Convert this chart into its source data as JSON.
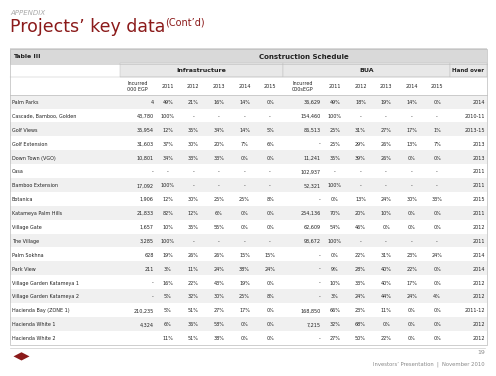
{
  "title_appendix": "APPENDIX",
  "title_main": "Projects’ key data",
  "title_cont": "(Cont’d)",
  "table_label": "Table III",
  "construction_schedule": "Construction Schedule",
  "infrastructure": "Infrastructure",
  "bua": "BUA",
  "hand_over": "Hand over",
  "col_incurred_infra": "Incurred\n000 EGP",
  "col_incurred_bua": "Incurred\n000sEGP",
  "years": [
    "2011",
    "2012",
    "2013",
    "2014",
    "2015"
  ],
  "rows": [
    {
      "name": "Palm Parks",
      "inc_i": "4",
      "i2011": "49%",
      "i2012": "21%",
      "i2013": "16%",
      "i2014": "14%",
      "i2015": "0%",
      "inc_b": "36,629",
      "b2011": "49%",
      "b2012": "18%",
      "b2013": "19%",
      "b2014": "14%",
      "b2015": "0%",
      "ho": "2014",
      "shade": true
    },
    {
      "name": "Cascade, Bamboo, Golden",
      "inc_i": "43,780",
      "i2011": "100%",
      "i2012": "-",
      "i2013": "-",
      "i2014": "-",
      "i2015": "-",
      "inc_b": "154,460",
      "b2011": "100%",
      "b2012": "-",
      "b2013": "-",
      "b2014": "-",
      "b2015": "-",
      "ho": "2010-11",
      "shade": false
    },
    {
      "name": "Golf Views",
      "inc_i": "35,954",
      "i2011": "12%",
      "i2012": "35%",
      "i2013": "34%",
      "i2014": "14%",
      "i2015": "5%",
      "inc_b": "86,513",
      "b2011": "25%",
      "b2012": "31%",
      "b2013": "27%",
      "b2014": "17%",
      "b2015": "1%",
      "ho": "2013-15",
      "shade": true
    },
    {
      "name": "Golf Extension",
      "inc_i": "31,603",
      "i2011": "37%",
      "i2012": "30%",
      "i2013": "20%",
      "i2014": "7%",
      "i2015": "6%",
      "inc_b": "-",
      "b2011": "25%",
      "b2012": "29%",
      "b2013": "26%",
      "b2014": "13%",
      "b2015": "7%",
      "ho": "2013",
      "shade": false
    },
    {
      "name": "Down Town (VGO)",
      "inc_i": "10,801",
      "i2011": "34%",
      "i2012": "33%",
      "i2013": "33%",
      "i2014": "0%",
      "i2015": "0%",
      "inc_b": "11,241",
      "b2011": "35%",
      "b2012": "39%",
      "b2013": "26%",
      "b2014": "0%",
      "b2015": "0%",
      "ho": "2013",
      "shade": true
    },
    {
      "name": "Casa",
      "inc_i": "-",
      "i2011": "-",
      "i2012": "-",
      "i2013": "-",
      "i2014": "-",
      "i2015": "-",
      "inc_b": "102,937",
      "b2011": "-",
      "b2012": "-",
      "b2013": "-",
      "b2014": "-",
      "b2015": "-",
      "ho": "2011",
      "shade": false
    },
    {
      "name": "Bamboo Extension",
      "inc_i": "17,092",
      "i2011": "100%",
      "i2012": "-",
      "i2013": "-",
      "i2014": "-",
      "i2015": "-",
      "inc_b": "52,321",
      "b2011": "100%",
      "b2012": "-",
      "b2013": "-",
      "b2014": "-",
      "b2015": "-",
      "ho": "2011",
      "shade": true
    },
    {
      "name": "Botanica",
      "inc_i": "1,906",
      "i2011": "12%",
      "i2012": "30%",
      "i2013": "25%",
      "i2014": "25%",
      "i2015": "8%",
      "inc_b": "-",
      "b2011": "0%",
      "b2012": "13%",
      "b2013": "24%",
      "b2014": "30%",
      "b2015": "33%",
      "ho": "2015",
      "shade": false
    },
    {
      "name": "Katameya Palm Hills",
      "inc_i": "21,833",
      "i2011": "82%",
      "i2012": "12%",
      "i2013": "6%",
      "i2014": "0%",
      "i2015": "0%",
      "inc_b": "254,136",
      "b2011": "70%",
      "b2012": "20%",
      "b2013": "10%",
      "b2014": "0%",
      "b2015": "0%",
      "ho": "2011",
      "shade": true
    },
    {
      "name": "Village Gate",
      "inc_i": "1,657",
      "i2011": "10%",
      "i2012": "35%",
      "i2013": "55%",
      "i2014": "0%",
      "i2015": "0%",
      "inc_b": "62,609",
      "b2011": "54%",
      "b2012": "46%",
      "b2013": "0%",
      "b2014": "0%",
      "b2015": "0%",
      "ho": "2012",
      "shade": false
    },
    {
      "name": "The Village",
      "inc_i": "3,285",
      "i2011": "100%",
      "i2012": "-",
      "i2013": "-",
      "i2014": "-",
      "i2015": "-",
      "inc_b": "93,672",
      "b2011": "100%",
      "b2012": "-",
      "b2013": "-",
      "b2014": "-",
      "b2015": "-",
      "ho": "2011",
      "shade": true
    },
    {
      "name": "Palm Sokhna",
      "inc_i": "628",
      "i2011": "19%",
      "i2012": "26%",
      "i2013": "26%",
      "i2014": "15%",
      "i2015": "15%",
      "inc_b": "-",
      "b2011": "0%",
      "b2012": "22%",
      "b2013": "31%",
      "b2014": "23%",
      "b2015": "24%",
      "ho": "2014",
      "shade": false
    },
    {
      "name": "Park View",
      "inc_i": "211",
      "i2011": "3%",
      "i2012": "11%",
      "i2013": "24%",
      "i2014": "38%",
      "i2015": "24%",
      "inc_b": "-",
      "b2011": "9%",
      "b2012": "28%",
      "b2013": "40%",
      "b2014": "22%",
      "b2015": "0%",
      "ho": "2014",
      "shade": true
    },
    {
      "name": "Village Garden Katameya 1",
      "inc_i": "-",
      "i2011": "16%",
      "i2012": "22%",
      "i2013": "43%",
      "i2014": "19%",
      "i2015": "0%",
      "inc_b": "-",
      "b2011": "10%",
      "b2012": "33%",
      "b2013": "40%",
      "b2014": "17%",
      "b2015": "0%",
      "ho": "2012",
      "shade": false
    },
    {
      "name": "Village Garden Katameya 2",
      "inc_i": "-",
      "i2011": "5%",
      "i2012": "32%",
      "i2013": "30%",
      "i2014": "25%",
      "i2015": "8%",
      "inc_b": "-",
      "b2011": "3%",
      "b2012": "24%",
      "b2013": "44%",
      "b2014": "24%",
      "b2015": "4%",
      "ho": "2012",
      "shade": true
    },
    {
      "name": "Hacienda Bay (ZONE 1)",
      "inc_i": "210,235",
      "i2011": "5%",
      "i2012": "51%",
      "i2013": "27%",
      "i2014": "17%",
      "i2015": "0%",
      "inc_b": "168,850",
      "b2011": "66%",
      "b2012": "23%",
      "b2013": "11%",
      "b2014": "0%",
      "b2015": "0%",
      "ho": "2011-12",
      "shade": false
    },
    {
      "name": "Hacienda White 1",
      "inc_i": "4,324",
      "i2011": "6%",
      "i2012": "36%",
      "i2013": "58%",
      "i2014": "0%",
      "i2015": "0%",
      "inc_b": "7,215",
      "b2011": "32%",
      "b2012": "68%",
      "b2013": "0%",
      "b2014": "0%",
      "b2015": "0%",
      "ho": "2012",
      "shade": true
    },
    {
      "name": "Hacienda White 2",
      "inc_i": "",
      "i2011": "11%",
      "i2012": "51%",
      "i2013": "38%",
      "i2014": "0%",
      "i2015": "0%",
      "inc_b": "-",
      "b2011": "27%",
      "b2012": "50%",
      "b2013": "22%",
      "b2014": "0%",
      "b2015": "0%",
      "ho": "2012",
      "shade": false
    }
  ],
  "bg_color": "#ffffff",
  "header_bg": "#d9d9d9",
  "shade_color": "#f0f0f0",
  "text_color": "#222222",
  "title_color": "#8b1a1a",
  "appendix_color": "#aaaaaa",
  "border_color": "#bbbbbb",
  "footer_text": "Investors’ Presentation  |  November 2010",
  "page_number": "19"
}
